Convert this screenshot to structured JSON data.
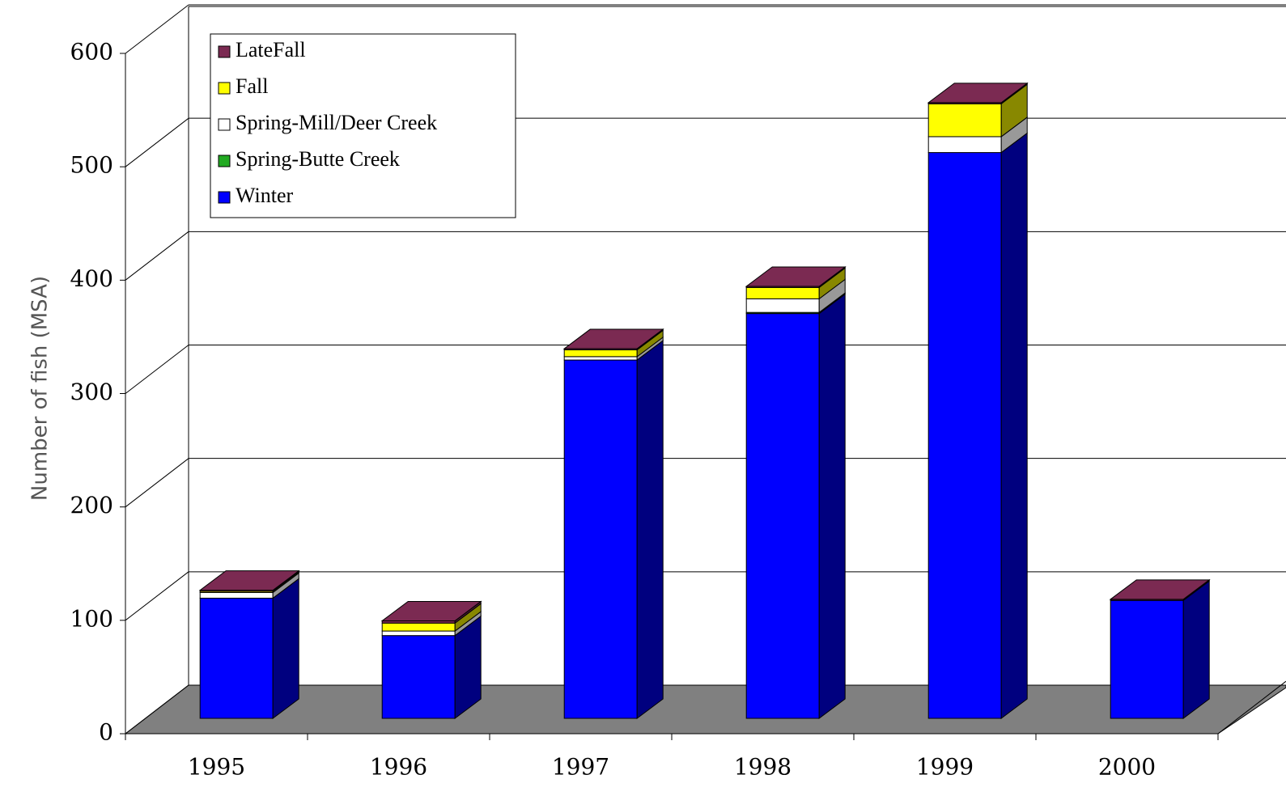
{
  "chart_data": {
    "type": "bar3d-stacked",
    "ylabel": "Number of fish (MSA)",
    "categories": [
      "1995",
      "1996",
      "1997",
      "1998",
      "1999",
      "2000"
    ],
    "series": [
      {
        "name": "Winter",
        "color": "#0000ff",
        "side": "#00007f",
        "values": [
          106,
          73,
          316,
          357,
          499,
          104
        ]
      },
      {
        "name": "Spring-Butte Creek",
        "color": "#22aa22",
        "side": "#116611",
        "values": [
          0,
          0,
          0,
          1,
          0,
          0
        ]
      },
      {
        "name": "Spring-Mill/Deer Creek",
        "color": "#ffffff",
        "side": "#999999",
        "values": [
          5,
          4,
          3,
          12,
          14,
          0
        ]
      },
      {
        "name": "Fall",
        "color": "#ffff00",
        "side": "#888800",
        "values": [
          1,
          7,
          6,
          10,
          29,
          0
        ]
      },
      {
        "name": "LateFall",
        "color": "#7b2a52",
        "side": "#4a1832",
        "values": [
          1,
          2,
          1,
          1,
          1,
          1
        ]
      }
    ],
    "ylim": [
      0,
      600
    ],
    "yticks": [
      0,
      100,
      200,
      300,
      400,
      500,
      600
    ],
    "grid": true,
    "legend": "upper-left"
  }
}
